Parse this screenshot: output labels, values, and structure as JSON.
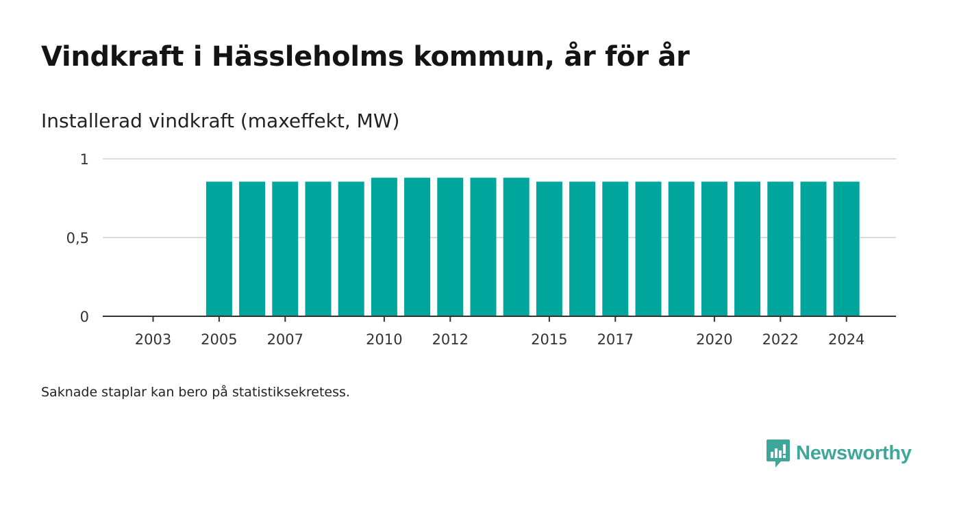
{
  "title": "Vindkraft i Hässleholms kommun, år för år",
  "subtitle": "Installerad vindkraft (maxeffekt, MW)",
  "footnote": "Saknade staplar kan bero på statistiksekretess.",
  "brand": {
    "name": "Newsworthy",
    "icon": "newsworthy-logo-icon",
    "color": "#3fa79a"
  },
  "chart_data": {
    "type": "bar",
    "title": "Vindkraft i Hässleholms kommun, år för år",
    "ylabel": "Installerad vindkraft (maxeffekt, MW)",
    "xlabel": "",
    "ylim": [
      0,
      1
    ],
    "yticks": [
      0,
      0.5,
      1
    ],
    "ytick_labels": [
      "0",
      "0,5",
      "1"
    ],
    "x_start": 2002,
    "categories": [
      "2002",
      "2003",
      "2004",
      "2005",
      "2006",
      "2007",
      "2008",
      "2009",
      "2010",
      "2011",
      "2012",
      "2013",
      "2014",
      "2015",
      "2016",
      "2017",
      "2018",
      "2019",
      "2020",
      "2021",
      "2022",
      "2023",
      "2024"
    ],
    "xtick_labels": [
      "2003",
      "2005",
      "2007",
      "2010",
      "2012",
      "2015",
      "2017",
      "2020",
      "2022",
      "2024"
    ],
    "values": [
      null,
      null,
      null,
      0.855,
      0.855,
      0.855,
      0.855,
      0.855,
      0.88,
      0.88,
      0.88,
      0.88,
      0.88,
      0.855,
      0.855,
      0.855,
      0.855,
      0.855,
      0.855,
      0.855,
      0.855,
      0.855,
      0.855
    ],
    "bar_color": "#00a69c",
    "grid": true,
    "legend": "none"
  }
}
